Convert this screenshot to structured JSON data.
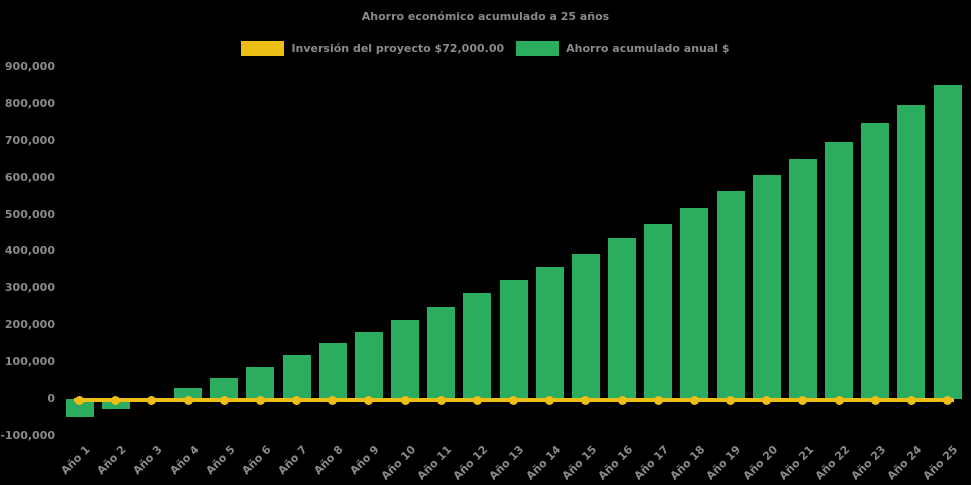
{
  "chart_data": {
    "type": "bar",
    "title": "Ahorro económico acumulado a 25 años",
    "categories": [
      "Año 1",
      "Año 2",
      "Año 3",
      "Año 4",
      "Año 5",
      "Año 6",
      "Año 7",
      "Año 8",
      "Año 9",
      "Año 10",
      "Año 11",
      "Año 12",
      "Año 13",
      "Año 14",
      "Año 15",
      "Año 16",
      "Año 17",
      "Año 18",
      "Año 19",
      "Año 20",
      "Año 21",
      "Año 22",
      "Año 23",
      "Año 24",
      "Año 25"
    ],
    "series": [
      {
        "name": "Inversión del proyecto $72,000.00",
        "type": "line",
        "color": "#EDBE16",
        "values": [
          0,
          0,
          0,
          0,
          0,
          0,
          0,
          0,
          0,
          0,
          0,
          0,
          0,
          0,
          0,
          0,
          0,
          0,
          0,
          0,
          0,
          0,
          0,
          0,
          0
        ]
      },
      {
        "name": "Ahorro acumulado anual $",
        "type": "bar",
        "color": "#2BAD60",
        "values": [
          -50000,
          -28000,
          4000,
          30000,
          56000,
          87000,
          119000,
          152000,
          182000,
          215000,
          250000,
          286000,
          322000,
          358000,
          394000,
          436000,
          474000,
          518000,
          563000,
          606000,
          650000,
          696000,
          747000,
          797000,
          850000
        ]
      }
    ],
    "ylim": [
      -100000,
      900000
    ],
    "ytick_step": 100000,
    "yticks": [
      {
        "value": 900000,
        "label": "900,000"
      },
      {
        "value": 800000,
        "label": "800,000"
      },
      {
        "value": 700000,
        "label": "700,000"
      },
      {
        "value": 600000,
        "label": "600,000"
      },
      {
        "value": 500000,
        "label": "500,000"
      },
      {
        "value": 400000,
        "label": "400,000"
      },
      {
        "value": 300000,
        "label": "300,000"
      },
      {
        "value": 200000,
        "label": "200,000"
      },
      {
        "value": 100000,
        "label": "100,000"
      },
      {
        "value": 0,
        "label": "0"
      },
      {
        "value": -100000,
        "label": "-100,000"
      }
    ],
    "grid": false,
    "legend_position": "top-center",
    "background_color": "#000000",
    "text_color": "#8A8A8A"
  }
}
